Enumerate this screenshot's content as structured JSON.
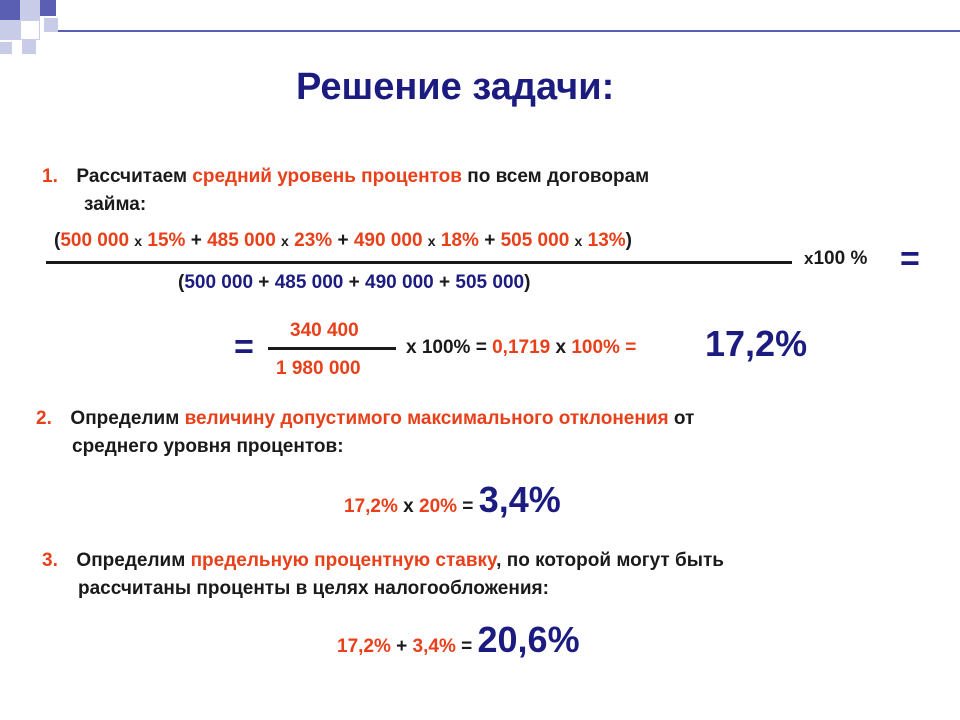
{
  "title": "Решение задачи:",
  "step1": {
    "num": "1.",
    "line1_a": "Рассчитаем ",
    "line1_b": "средний уровень процентов",
    "line1_c": " по всем договорам",
    "line2": "займа:"
  },
  "formula1": {
    "num_open": "(",
    "a1": "500 000",
    "x1": "x",
    "p1": "15%",
    "plus1": "+",
    "a2": "485 000",
    "x2": "x",
    "p2": "23%",
    "plus2": "+",
    "a3": "490 000",
    "x3": "x",
    "p3": "18%",
    "plus3": "+",
    "a4": "505 000",
    "x4": "x",
    "p4": "13%",
    "num_close": ")",
    "mult": "x",
    "hundred": "100 %",
    "equals": "=",
    "den_open": "(",
    "d1": "500 000",
    "dplus1": "+",
    "d2": "485 000",
    "dplus2": "+",
    "d3": "490 000",
    "dplus3": "+",
    "d4": "505 000",
    "den_close": ")"
  },
  "formula2": {
    "equals": "=",
    "numerator": "340 400",
    "denominator": "1 980 000",
    "x_a": "x ",
    "hundred_a": "100% = ",
    "decimal": "0,1719",
    "x_b": " x ",
    "hundred_b": "100% = ",
    "result": "17,2%"
  },
  "step2": {
    "num": "2.",
    "line1_a": "Определим ",
    "line1_b": "величину допустимого максимального отклонения",
    "line1_c": " от",
    "line2": "среднего уровня процентов:"
  },
  "formula3": {
    "a": "17,2%",
    "op": " x ",
    "b": "20%",
    "eq": " = ",
    "result": "3,4%"
  },
  "step3": {
    "num": "3.",
    "line1_a": "Определим ",
    "line1_b": "предельную процентную ставку",
    "line1_c": ", по которой могут быть",
    "line2": "рассчитаны проценты в целях налогообложения:"
  },
  "formula4": {
    "a": "17,2%",
    "op": " + ",
    "b": "3,4%",
    "eq": " = ",
    "result": "20,6%"
  },
  "colors": {
    "navy": "#1c1c80",
    "red": "#e8401a",
    "text": "#1a1a1a",
    "deco_blue": "#5b5fb4",
    "deco_light": "#c9cce8"
  }
}
